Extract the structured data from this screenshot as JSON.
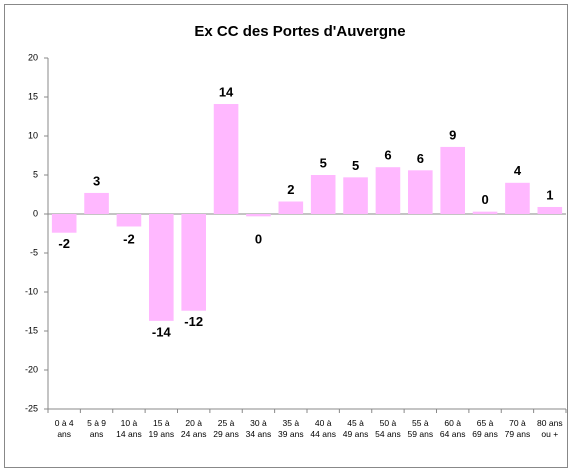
{
  "chart_data": {
    "type": "bar",
    "title": "Ex CC des Portes d'Auvergne",
    "categories": [
      "0 à 4 ans",
      "5 à 9 ans",
      "10 à 14 ans",
      "15 à 19 ans",
      "20 à 24 ans",
      "25 à 29 ans",
      "30 à 34 ans",
      "35 à 39 ans",
      "40 à 44 ans",
      "45 à 49 ans",
      "50 à 54 ans",
      "55 à 59 ans",
      "60 à 64 ans",
      "65 à 69 ans",
      "70 à 79 ans",
      "80 ans ou +"
    ],
    "values": [
      -2.4,
      2.7,
      -1.6,
      -13.7,
      -12.4,
      14.1,
      -0.3,
      1.6,
      5.0,
      4.7,
      6.0,
      5.6,
      8.6,
      0.3,
      4.0,
      0.9
    ],
    "value_labels": [
      "-2",
      "3",
      "-2",
      "-14",
      "-12",
      "14",
      "0",
      "2",
      "5",
      "5",
      "6",
      "6",
      "9",
      "0",
      "4",
      "1"
    ],
    "color": "#ffb8ff",
    "ylim": [
      -25,
      20
    ],
    "yticks": [
      -25,
      -20,
      -15,
      -10,
      -5,
      0,
      5,
      10,
      15,
      20
    ],
    "grid": false
  }
}
